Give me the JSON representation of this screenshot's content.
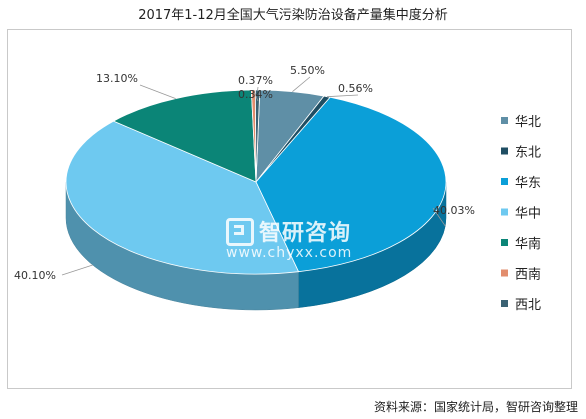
{
  "title": "2017年1-12月全国大气污染防治设备产量集中度分析",
  "watermark": {
    "brand": "智研咨询",
    "url": "www.chyxx.com"
  },
  "source": "资料来源：国家统计局，智研咨询整理",
  "chart_data": {
    "type": "pie",
    "style": "3d",
    "legend_position": "right",
    "slices": [
      {
        "name": "华北",
        "value": 5.5,
        "label": "5.50%",
        "color": "#5f8fa6"
      },
      {
        "name": "东北",
        "value": 0.56,
        "label": "0.56%",
        "color": "#1f4e63"
      },
      {
        "name": "华东",
        "value": 40.03,
        "label": "40.03%",
        "color": "#0b9fd8"
      },
      {
        "name": "华中",
        "value": 40.1,
        "label": "40.10%",
        "color": "#6ec9f0"
      },
      {
        "name": "华南",
        "value": 13.1,
        "label": "13.10%",
        "color": "#0b8577"
      },
      {
        "name": "西南",
        "value": 0.34,
        "label": "0.34%",
        "color": "#e28d6d"
      },
      {
        "name": "西北",
        "value": 0.37,
        "label": "0.37%",
        "color": "#3a6273"
      }
    ]
  }
}
